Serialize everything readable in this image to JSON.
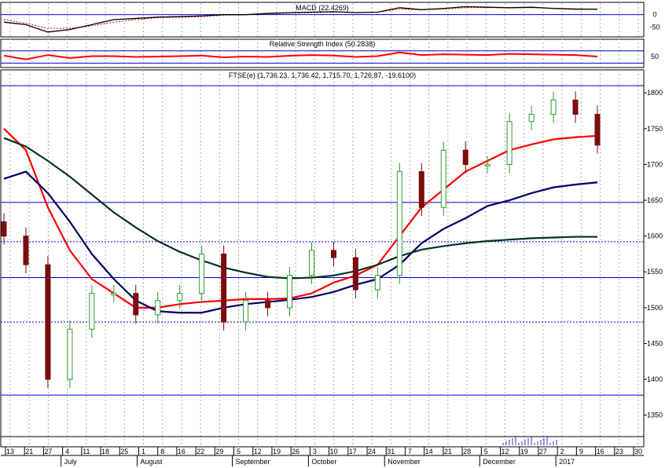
{
  "panels": {
    "macd": {
      "title": "MACD (22.4269)",
      "ticks": [
        "0",
        "-50"
      ]
    },
    "rsi": {
      "title": "Relative Strength Index (50.2838)",
      "ticks": [
        "50"
      ]
    },
    "price": {
      "title": "FTSE(e) (1,736.23, 1,736.42, 1,715.70, 1,726.87, -19.6100)",
      "ticks": [
        "1800",
        "1750",
        "1700",
        "1650",
        "1600",
        "1550",
        "1500",
        "1450",
        "1400",
        "1350"
      ]
    }
  },
  "x_axis": {
    "days": [
      "13",
      "21",
      "27",
      "4",
      "11",
      "18",
      "25",
      "1",
      "8",
      "16",
      "22",
      "29",
      "5",
      "12",
      "19",
      "26",
      "3",
      "10",
      "17",
      "24",
      "31",
      "7",
      "14",
      "21",
      "28",
      "5",
      "12",
      "19",
      "27",
      "2",
      "9",
      "16",
      "23",
      "30"
    ],
    "months": [
      "July",
      "August",
      "September",
      "October",
      "November",
      "December",
      "2017"
    ]
  },
  "colors": {
    "up_candle": "#2e9b2e",
    "down_candle": "#7a0d0d",
    "ma_fast": "#ff0000",
    "ma_mid": "#000066",
    "ma_slow": "#003322",
    "hline": "#0000cc",
    "macd_signal": "#cc0000"
  },
  "chart_data": {
    "type": "candlestick",
    "title": "FTSE(e) (1,736.23, 1,736.42, 1,715.70, 1,726.87, -19.6100)",
    "ylim": [
      1320,
      1820
    ],
    "horizontal_levels": [
      1810,
      1647,
      1592,
      1542,
      1480,
      1378
    ],
    "x": [
      "Jul 13",
      "Jul 20",
      "Jul 27",
      "Aug 3",
      "Aug 10",
      "Aug 17",
      "Aug 24",
      "Aug 31",
      "Sep 7",
      "Sep 14",
      "Sep 21",
      "Sep 28",
      "Oct 5",
      "Oct 12",
      "Oct 19",
      "Oct 26",
      "Nov 2",
      "Nov 9",
      "Nov 16",
      "Nov 23",
      "Nov 30",
      "Dec 7",
      "Dec 14",
      "Dec 21",
      "Dec 28",
      "Jan 4",
      "Jan 11",
      "Jan 18"
    ],
    "series": [
      {
        "name": "Close",
        "values": [
          1600,
          1560,
          1400,
          1470,
          1520,
          1520,
          1490,
          1510,
          1520,
          1575,
          1480,
          1510,
          1500,
          1545,
          1580,
          1570,
          1525,
          1545,
          1690,
          1640,
          1720,
          1700,
          1700,
          1760,
          1770,
          1790,
          1770,
          1727
        ]
      },
      {
        "name": "MA fast",
        "values": [
          1750,
          1720,
          1640,
          1580,
          1540,
          1520,
          1500,
          1500,
          1505,
          1508,
          1510,
          1512,
          1512,
          1513,
          1520,
          1535,
          1545,
          1560,
          1600,
          1640,
          1665,
          1690,
          1705,
          1720,
          1728,
          1735,
          1738,
          1740
        ]
      },
      {
        "name": "MA mid",
        "values": [
          1680,
          1690,
          1660,
          1620,
          1575,
          1540,
          1510,
          1495,
          1493,
          1493,
          1500,
          1505,
          1508,
          1511,
          1515,
          1522,
          1532,
          1540,
          1560,
          1590,
          1610,
          1625,
          1642,
          1650,
          1660,
          1668,
          1672,
          1675
        ]
      },
      {
        "name": "MA slow",
        "values": [
          1737,
          1725,
          1705,
          1683,
          1658,
          1633,
          1612,
          1593,
          1578,
          1566,
          1556,
          1549,
          1543,
          1541,
          1542,
          1545,
          1551,
          1560,
          1572,
          1581,
          1586,
          1590,
          1593,
          1595,
          1597,
          1598,
          1599,
          1599
        ]
      }
    ],
    "macd": {
      "title": "MACD (22.4269)",
      "ylim": [
        -80,
        40
      ],
      "ticks": [
        0,
        -50
      ],
      "line": [
        -30,
        -40,
        -70,
        -60,
        -40,
        -20,
        -15,
        -10,
        -8,
        -5,
        0,
        0,
        5,
        8,
        10,
        12,
        8,
        10,
        28,
        20,
        25,
        32,
        30,
        28,
        30,
        25,
        22,
        22
      ],
      "signal": [
        -20,
        -35,
        -55,
        -55,
        -45,
        -30,
        -20,
        -12,
        -10,
        -8,
        -2,
        0,
        3,
        6,
        8,
        10,
        9,
        10,
        22,
        20,
        22,
        28,
        28,
        27,
        28,
        26,
        24,
        22
      ]
    },
    "rsi": {
      "title": "Relative Strength Index (50.2838)",
      "ylim": [
        0,
        100
      ],
      "ticks": [
        50
      ],
      "values": [
        55,
        35,
        58,
        42,
        52,
        52,
        48,
        50,
        52,
        55,
        46,
        50,
        48,
        54,
        58,
        55,
        48,
        52,
        72,
        58,
        62,
        60,
        58,
        64,
        62,
        60,
        58,
        50
      ]
    }
  }
}
